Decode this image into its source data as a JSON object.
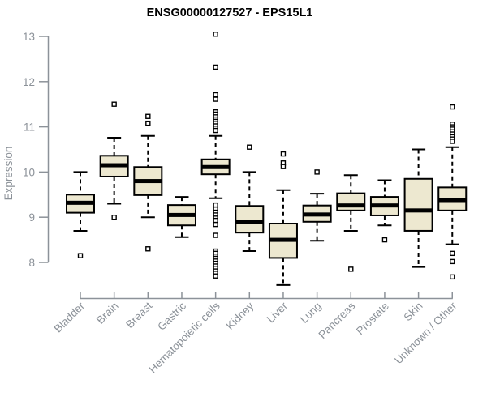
{
  "page": {
    "background": "#ffffff"
  },
  "chart_data": {
    "type": "box",
    "title": "ENSG00000127527 - EPS15L1",
    "ylabel": "Expression",
    "xlabel": "",
    "ylim": [
      7.2,
      13.25
    ],
    "yticks": [
      8,
      9,
      10,
      11,
      12,
      13
    ],
    "grid": false,
    "legend": "none",
    "colors": {
      "box_fill": "#EDE8D0",
      "box_stroke": "#000000",
      "median": "#000000",
      "whisker": "#000000",
      "outlier_stroke": "#000000",
      "outlier_fill": "#ffffff",
      "axis": "#8C9299",
      "title": "#000000"
    },
    "categories": [
      "Bladder",
      "Brain",
      "Breast",
      "Gastric",
      "Hematopoietic cells",
      "Kidney",
      "Liver",
      "Lung",
      "Pancreas",
      "Prostate",
      "Skin",
      "Unknown / Other"
    ],
    "series": [
      {
        "name": "Bladder",
        "whislo": 8.7,
        "q1": 9.1,
        "med": 9.32,
        "q3": 9.5,
        "whishi": 10.0,
        "outliers": [
          8.15
        ]
      },
      {
        "name": "Brain",
        "whislo": 9.3,
        "q1": 9.9,
        "med": 10.15,
        "q3": 10.36,
        "whishi": 10.76,
        "outliers": [
          11.5,
          9.0
        ]
      },
      {
        "name": "Breast",
        "whislo": 9.0,
        "q1": 9.49,
        "med": 9.8,
        "q3": 10.11,
        "whishi": 10.8,
        "outliers": [
          11.23,
          11.08,
          8.3
        ]
      },
      {
        "name": "Gastric",
        "whislo": 8.56,
        "q1": 8.82,
        "med": 9.05,
        "q3": 9.27,
        "whishi": 9.45,
        "outliers": []
      },
      {
        "name": "Hematopoietic cells",
        "whislo": 9.42,
        "q1": 9.95,
        "med": 10.11,
        "q3": 10.28,
        "whishi": 10.8,
        "outliers": [
          13.05,
          12.32,
          11.71,
          11.61,
          11.33,
          11.28,
          11.22,
          11.17,
          11.12,
          11.07,
          11.02,
          10.97,
          10.92,
          9.27,
          9.18,
          9.11,
          9.05,
          8.98,
          8.93,
          8.84,
          8.6,
          8.25,
          8.2,
          8.14,
          8.09,
          8.03,
          7.98,
          7.92,
          7.87,
          7.81,
          7.76,
          7.7
        ]
      },
      {
        "name": "Kidney",
        "whislo": 8.25,
        "q1": 8.66,
        "med": 8.9,
        "q3": 9.25,
        "whishi": 10.0,
        "outliers": [
          10.55
        ]
      },
      {
        "name": "Liver",
        "whislo": 7.5,
        "q1": 8.1,
        "med": 8.5,
        "q3": 8.86,
        "whishi": 9.6,
        "outliers": [
          10.4,
          10.2,
          10.12
        ]
      },
      {
        "name": "Lung",
        "whislo": 8.48,
        "q1": 8.9,
        "med": 9.06,
        "q3": 9.26,
        "whishi": 9.52,
        "outliers": [
          10.0
        ]
      },
      {
        "name": "Pancreas",
        "whislo": 8.7,
        "q1": 9.15,
        "med": 9.26,
        "q3": 9.53,
        "whishi": 9.93,
        "outliers": [
          7.85
        ]
      },
      {
        "name": "Prostate",
        "whislo": 8.82,
        "q1": 9.04,
        "med": 9.26,
        "q3": 9.45,
        "whishi": 9.82,
        "outliers": [
          8.5
        ]
      },
      {
        "name": "Skin",
        "whislo": 7.9,
        "q1": 8.7,
        "med": 9.15,
        "q3": 9.85,
        "whishi": 10.5,
        "outliers": []
      },
      {
        "name": "Unknown / Other",
        "whislo": 8.4,
        "q1": 9.15,
        "med": 9.38,
        "q3": 9.66,
        "whishi": 10.55,
        "outliers": [
          11.44,
          11.06,
          11.0,
          10.95,
          10.89,
          10.84,
          10.78,
          10.73,
          10.68,
          8.2,
          8.02,
          7.68
        ]
      }
    ]
  }
}
